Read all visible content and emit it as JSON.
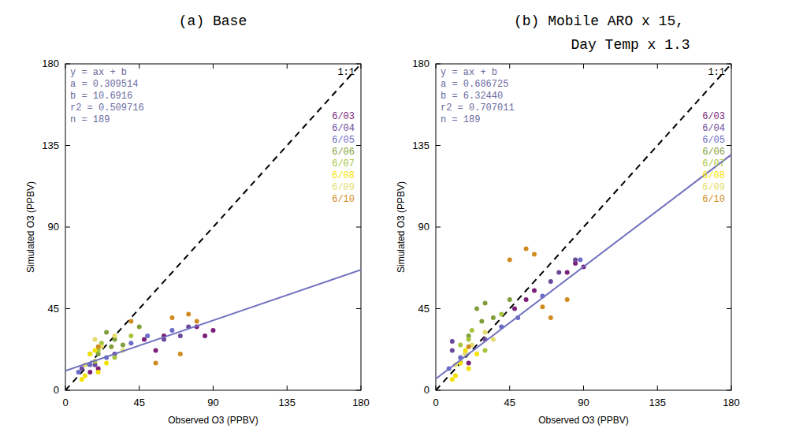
{
  "chart_data": [
    {
      "type": "scatter",
      "title": "(a) Base",
      "x_label": "Observed O3 (PPBV)",
      "y_label": "Simulated O3 (PPBV)",
      "xlim": [
        0,
        180
      ],
      "ylim": [
        0,
        180
      ],
      "xticks": [
        0,
        45,
        90,
        135,
        180
      ],
      "yticks": [
        0,
        45,
        90,
        135,
        180
      ],
      "annotations": [
        "y = ax + b",
        "a =  0.309514",
        "b =  10.6916",
        "r2 = 0.509716",
        "n = 189"
      ],
      "reference_line": {
        "label": "1:1",
        "line_style": "dashed",
        "color": "#000000"
      },
      "fit": {
        "a": 0.309514,
        "b": 10.6916,
        "color": "#7070c0"
      },
      "legend": "right",
      "series": [
        {
          "name": "6/03",
          "color": "#7a1f7a",
          "marker": "circle",
          "x": [
            85,
            90,
            80,
            60,
            55,
            20,
            15,
            48
          ],
          "values": [
            30,
            33,
            35,
            30,
            22,
            12,
            10,
            28
          ]
        },
        {
          "name": "6/04",
          "color": "#6a4a9a",
          "marker": "circle",
          "x": [
            70,
            75,
            60,
            30,
            18,
            10
          ],
          "values": [
            30,
            35,
            28,
            20,
            14,
            12
          ]
        },
        {
          "name": "6/05",
          "color": "#6b6bc8",
          "marker": "circle",
          "x": [
            50,
            40,
            25,
            15,
            8,
            65
          ],
          "values": [
            30,
            26,
            18,
            14,
            10,
            33
          ]
        },
        {
          "name": "6/06",
          "color": "#7f9f3a",
          "marker": "circle",
          "x": [
            30,
            25,
            35,
            20,
            45,
            28
          ],
          "values": [
            28,
            32,
            25,
            20,
            35,
            24
          ]
        },
        {
          "name": "6/07",
          "color": "#a6c43e",
          "marker": "circle",
          "x": [
            20,
            22,
            15,
            30,
            40,
            18
          ],
          "values": [
            22,
            26,
            20,
            18,
            30,
            16
          ]
        },
        {
          "name": "6/08",
          "color": "#f2e200",
          "marker": "circle",
          "x": [
            15,
            12,
            20,
            25,
            10,
            18
          ],
          "values": [
            20,
            8,
            10,
            15,
            6,
            22
          ]
        },
        {
          "name": "6/09",
          "color": "#e4dc6a",
          "marker": "circle",
          "x": [
            22,
            18,
            30,
            12,
            35
          ],
          "values": [
            24,
            28,
            30,
            14,
            22
          ]
        },
        {
          "name": "6/10",
          "color": "#d08c20",
          "marker": "circle",
          "x": [
            70,
            75,
            55,
            80,
            40,
            20,
            65
          ],
          "values": [
            20,
            42,
            15,
            38,
            38,
            24,
            40
          ]
        }
      ]
    },
    {
      "type": "scatter",
      "title": "(b) Mobile ARO x 15,\nDay Temp x 1.3",
      "x_label": "Observed O3 (PPBV)",
      "y_label": "Simulated O3 (PPBV)",
      "xlim": [
        0,
        180
      ],
      "ylim": [
        0,
        180
      ],
      "xticks": [
        0,
        45,
        90,
        135,
        180
      ],
      "yticks": [
        0,
        45,
        90,
        135,
        180
      ],
      "annotations": [
        "y = ax + b",
        "a =  0.686725",
        "b =  6.32440",
        "r2 = 0.707011",
        "n = 189"
      ],
      "reference_line": {
        "label": "1:1",
        "line_style": "dashed",
        "color": "#000000"
      },
      "fit": {
        "a": 0.686725,
        "b": 6.3244,
        "color": "#7070c0"
      },
      "legend": "right",
      "series": [
        {
          "name": "6/03",
          "color": "#7a1f7a",
          "marker": "circle",
          "x": [
            85,
            90,
            80,
            60,
            55,
            20,
            48
          ],
          "values": [
            70,
            68,
            65,
            55,
            50,
            15,
            45
          ]
        },
        {
          "name": "6/04",
          "color": "#6a4a9a",
          "marker": "circle",
          "x": [
            70,
            85,
            75,
            30,
            10,
            10
          ],
          "values": [
            60,
            72,
            65,
            28,
            22,
            27
          ]
        },
        {
          "name": "6/05",
          "color": "#6b6bc8",
          "marker": "circle",
          "x": [
            50,
            40,
            88,
            15,
            8,
            65
          ],
          "values": [
            40,
            35,
            72,
            18,
            12,
            52
          ]
        },
        {
          "name": "6/06",
          "color": "#7f9f3a",
          "marker": "circle",
          "x": [
            30,
            25,
            35,
            20,
            45,
            28
          ],
          "values": [
            48,
            45,
            40,
            30,
            50,
            38
          ]
        },
        {
          "name": "6/07",
          "color": "#a6c43e",
          "marker": "circle",
          "x": [
            20,
            22,
            15,
            30,
            40,
            18
          ],
          "values": [
            28,
            33,
            25,
            22,
            42,
            20
          ]
        },
        {
          "name": "6/08",
          "color": "#f2e200",
          "marker": "circle",
          "x": [
            15,
            12,
            20,
            25,
            10,
            18
          ],
          "values": [
            15,
            8,
            12,
            20,
            6,
            22
          ]
        },
        {
          "name": "6/09",
          "color": "#e4dc6a",
          "marker": "circle",
          "x": [
            22,
            18,
            30,
            12,
            35
          ],
          "values": [
            25,
            20,
            32,
            14,
            28
          ]
        },
        {
          "name": "6/10",
          "color": "#d08c20",
          "marker": "circle",
          "x": [
            70,
            55,
            45,
            80,
            60,
            20,
            65
          ],
          "values": [
            40,
            78,
            72,
            50,
            75,
            24,
            46
          ]
        }
      ]
    }
  ]
}
